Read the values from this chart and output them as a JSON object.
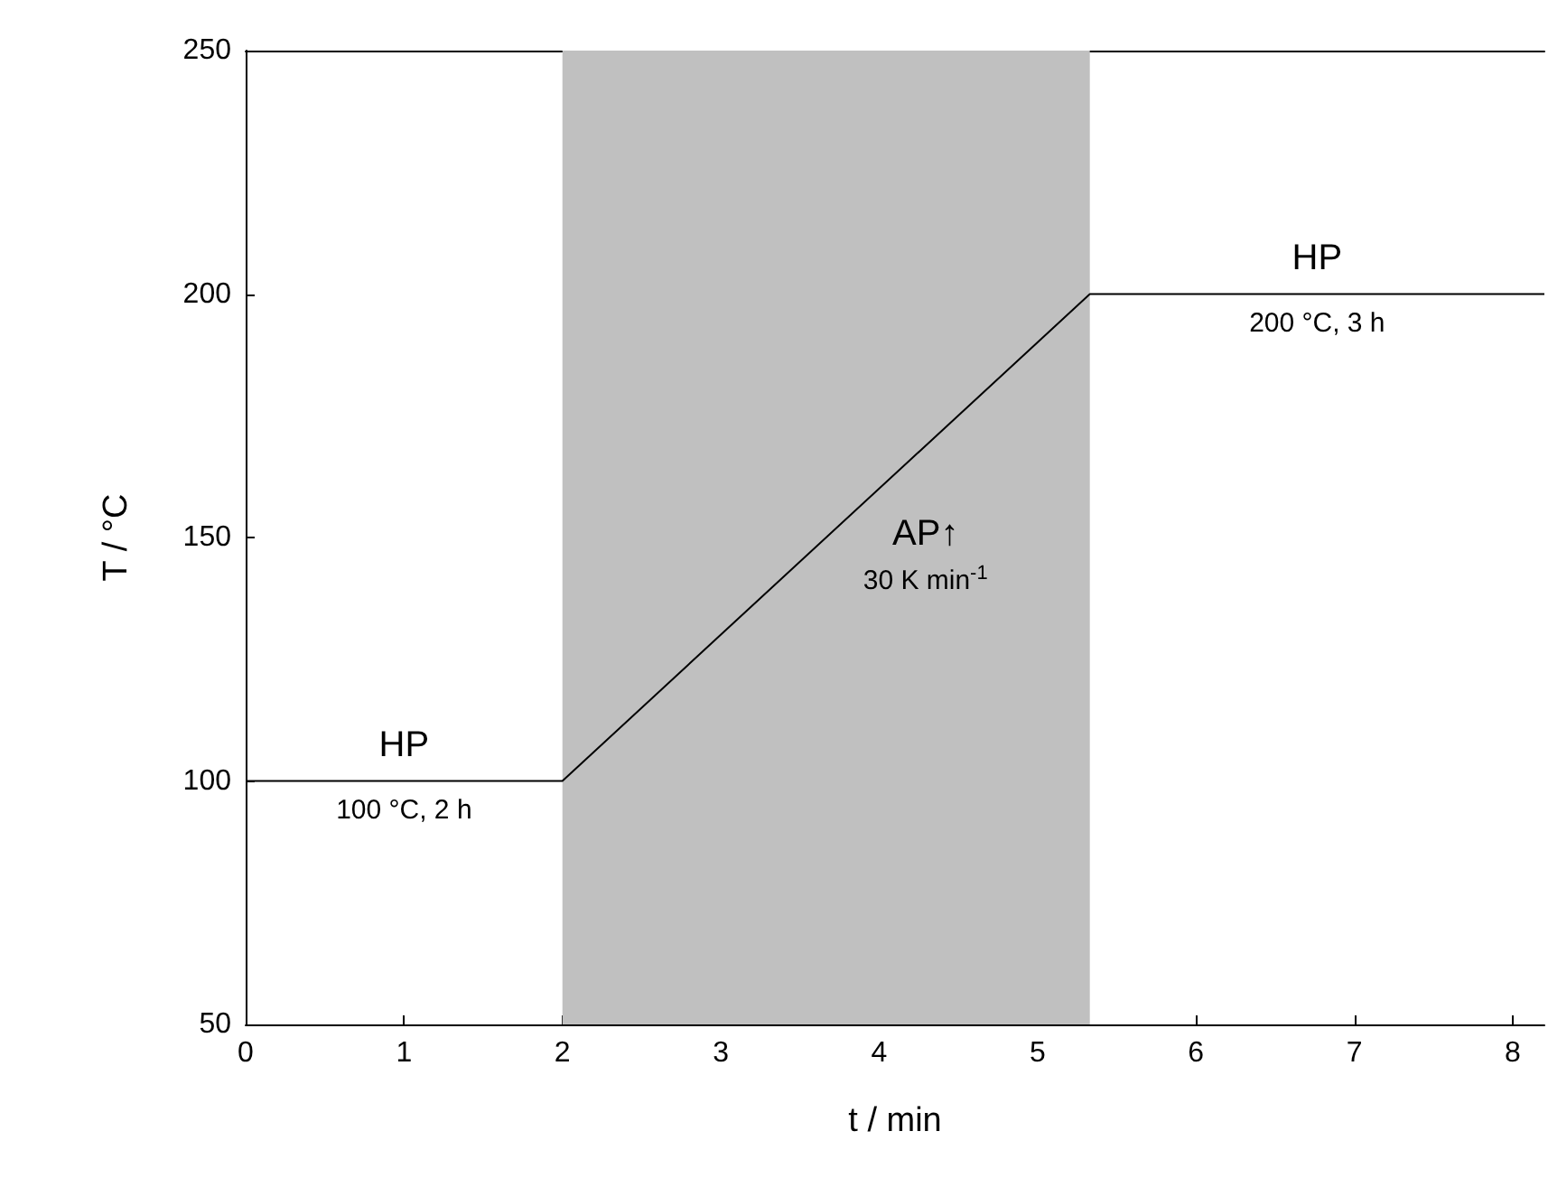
{
  "chart_data": {
    "type": "line",
    "xlabel": "t / min",
    "ylabel": "T / °C",
    "x": [
      0,
      2,
      5.33,
      8.2
    ],
    "series": [
      {
        "color": "#000000",
        "values": [
          100,
          100,
          200,
          200
        ]
      }
    ],
    "xlim": [
      0,
      8.2
    ],
    "xticks": [
      0,
      1,
      2,
      3,
      4,
      5,
      6,
      7,
      8
    ],
    "ylim": [
      50,
      250
    ],
    "yticks": [
      50,
      100,
      150,
      200,
      250
    ],
    "grid": false,
    "marker": "none",
    "line_style": "solid",
    "bands": [
      {
        "axis": "x",
        "from": 2,
        "to": 5.33,
        "color": "#c0c0c0"
      }
    ],
    "annotations": [
      "HP",
      "100 °C, 2 h",
      "AP↑",
      "30 K min$^{-1}$",
      "HP",
      "200 °C, 3 h"
    ]
  }
}
